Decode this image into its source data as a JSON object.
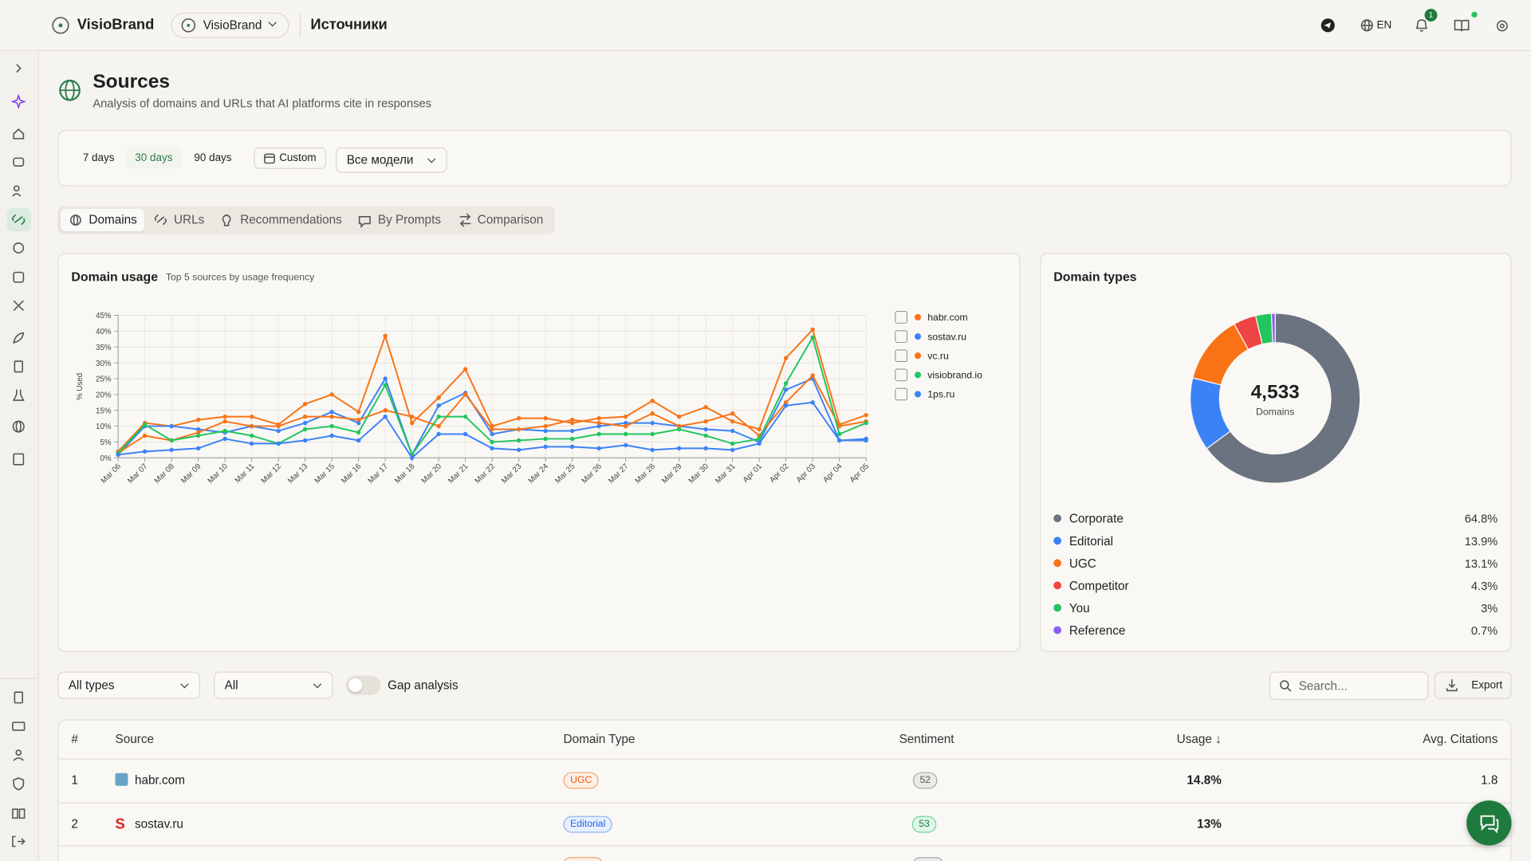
{
  "topbar": {
    "brand": "VisioBrand",
    "workspace": "VisioBrand",
    "page": "Источники",
    "language": "EN",
    "notifications": "1"
  },
  "header": {
    "title": "Sources",
    "subtitle": "Analysis of domains and URLs that AI platforms cite in responses"
  },
  "filters": {
    "periods": [
      "7 days",
      "30 days",
      "90 days"
    ],
    "custom": "Custom",
    "model": "Все модели"
  },
  "tabs": [
    "Domains",
    "URLs",
    "Recommendations",
    "By Prompts",
    "Comparison"
  ],
  "chart_data": [
    {
      "type": "line",
      "title": "Domain usage",
      "subtitle": "Top 5 sources by usage frequency",
      "y_label": "% Used",
      "categories": [
        "Mar 06",
        "Mar 07",
        "Mar 08",
        "Mar 09",
        "Mar 10",
        "Mar 11",
        "Mar 12",
        "Mar 13",
        "Mar 15",
        "Mar 16",
        "Mar 17",
        "Mar 18",
        "Mar 20",
        "Mar 21",
        "Mar 22",
        "Mar 23",
        "Mar 24",
        "Mar 25",
        "Mar 26",
        "Mar 27",
        "Mar 28",
        "Mar 29",
        "Mar 30",
        "Mar 31",
        "Apr 01",
        "Apr 02",
        "Apr 03",
        "Apr 04",
        "Apr 05"
      ],
      "series": [
        {
          "name": "habr.com",
          "color": "#f97316",
          "values": [
            2,
            11,
            10,
            12,
            13,
            13,
            10.5,
            17,
            20,
            14.5,
            38.5,
            11,
            19,
            28,
            10,
            12.5,
            12.5,
            11,
            12.5,
            13,
            18,
            13,
            16,
            11.5,
            9,
            31.5,
            40.5,
            10.5,
            13.5
          ]
        },
        {
          "name": "sostav.ru",
          "color": "#3b82f6",
          "values": [
            1,
            10,
            10,
            9,
            8,
            10,
            8.5,
            11,
            14.5,
            11,
            25,
            1,
            16.5,
            20.5,
            7.5,
            9,
            8.5,
            8.5,
            10,
            11,
            11,
            10,
            9,
            8.5,
            5,
            21.5,
            25,
            5.5,
            6
          ]
        },
        {
          "name": "vc.ru",
          "color": "#f97316",
          "values": [
            1.5,
            7,
            5.5,
            8,
            11.5,
            10,
            10,
            13,
            13,
            12,
            15,
            13,
            10,
            20,
            9,
            9,
            10,
            12,
            11,
            10,
            14,
            10,
            11.5,
            14,
            7,
            17.5,
            26,
            10,
            11.5
          ]
        },
        {
          "name": "visiobrand.io",
          "color": "#22c55e",
          "values": [
            1.5,
            10.5,
            5.5,
            7,
            8.5,
            7,
            4.5,
            9,
            10,
            8,
            23,
            1,
            13,
            13,
            5,
            5.5,
            6,
            6,
            7.5,
            7.5,
            7.5,
            9,
            7,
            4.5,
            6,
            23.5,
            38,
            7.5,
            11
          ]
        },
        {
          "name": "1ps.ru",
          "color": "#3b82f6",
          "values": [
            1,
            2,
            2.5,
            3,
            6,
            4.5,
            4.5,
            5.5,
            7,
            5.5,
            13,
            0,
            7.5,
            7.5,
            3,
            2.5,
            3.5,
            3.5,
            3,
            4,
            2.5,
            3,
            3,
            2.5,
            4.5,
            16.5,
            17.5,
            5.5,
            5.5
          ]
        }
      ],
      "ylim": [
        0,
        45
      ],
      "yticks": [
        {
          "value": 0,
          "label": "0%"
        },
        {
          "value": 5,
          "label": "5%"
        },
        {
          "value": 10,
          "label": "10%"
        },
        {
          "value": 15,
          "label": "15%"
        },
        {
          "value": 20,
          "label": "20%"
        },
        {
          "value": 25,
          "label": "25%"
        },
        {
          "value": 30,
          "label": "30%"
        },
        {
          "value": 35,
          "label": "35%"
        },
        {
          "value": 40,
          "label": "40%"
        },
        {
          "value": 45,
          "label": "45%"
        }
      ],
      "grid": true,
      "legend": "right"
    },
    {
      "type": "pie",
      "title": "Domain types",
      "donut": true,
      "categories": [
        "Corporate",
        "Editorial",
        "UGC",
        "Competitor",
        "You",
        "Reference"
      ],
      "values": [
        64.8,
        13.9,
        13.1,
        4.3,
        3,
        0.7
      ],
      "value_labels": [
        "64.8%",
        "13.9%",
        "13.1%",
        "4.3%",
        "3%",
        "0.7%"
      ],
      "colors": [
        "#6b7280",
        "#3b82f6",
        "#f97316",
        "#ef4444",
        "#22c55e",
        "#8b5cf6"
      ],
      "center": {
        "value": 4533,
        "label": "4,533"
      },
      "center_caption": "Domains",
      "legend": "bottom"
    }
  ],
  "table_controls": {
    "type": "All types",
    "scope": "All",
    "gap": "Gap analysis",
    "search": "Search...",
    "export": "Export"
  },
  "table": {
    "headers": [
      "#",
      "Source",
      "Domain Type",
      "Sentiment",
      "Usage ↓",
      "Avg. Citations"
    ],
    "rows": [
      {
        "rank": "1",
        "source": "habr.com",
        "type": "UGC",
        "sentiment": "52",
        "usage": "14.8%",
        "citations": "1.8"
      },
      {
        "rank": "2",
        "source": "sostav.ru",
        "type": "Editorial",
        "sentiment": "53",
        "usage": "13%"
      }
    ]
  }
}
